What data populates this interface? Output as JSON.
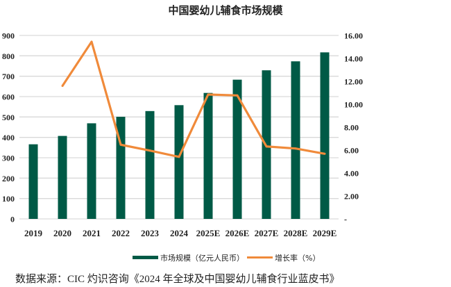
{
  "chart_data": {
    "type": "bar",
    "title": "中国婴幼儿辅食市场规模",
    "categories": [
      "2019",
      "2020",
      "2021",
      "2022",
      "2023",
      "2024",
      "2025E",
      "2026E",
      "2027E",
      "2028E",
      "2029E"
    ],
    "series": [
      {
        "name": "市场规模（亿元人民币）",
        "type": "bar",
        "axis": "left",
        "color": "#005a46",
        "values": [
          366,
          407,
          469,
          501,
          529,
          558,
          618,
          683,
          729,
          773,
          817
        ]
      },
      {
        "name": "增长率（%）",
        "type": "line",
        "axis": "right",
        "color": "#f08a3a",
        "values": [
          null,
          11.6,
          15.45,
          6.47,
          5.96,
          5.41,
          10.85,
          10.77,
          6.32,
          6.14,
          5.68
        ]
      }
    ],
    "ylim": [
      0,
      900
    ],
    "yticks": [
      "0",
      "100",
      "200",
      "300",
      "400",
      "500",
      "600",
      "700",
      "800",
      "900"
    ],
    "y2lim": [
      0,
      16
    ],
    "y2ticks": [
      "-",
      "2.00",
      "4.00",
      "6.00",
      "8.00",
      "10.00",
      "12.00",
      "14.00",
      "16.00"
    ],
    "grid": true,
    "legend": "bottom"
  },
  "source": "数据来源：CIC 灼识咨询《2024 年全球及中国婴幼儿辅食行业蓝皮书》"
}
